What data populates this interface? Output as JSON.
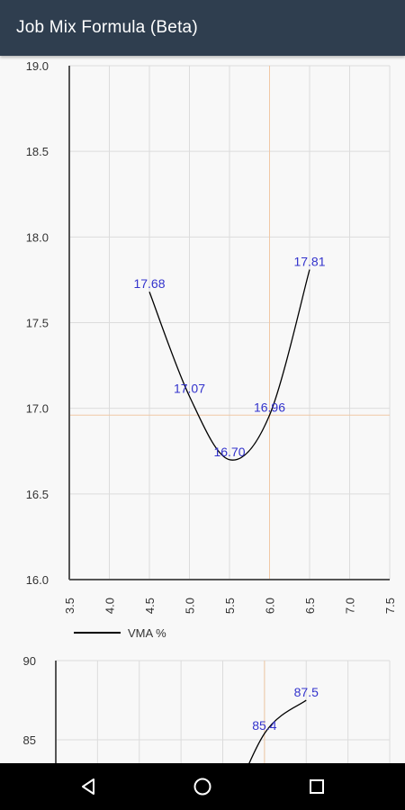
{
  "app": {
    "title": "Job Mix Formula (Beta)"
  },
  "colors": {
    "appbar": "#2f3e4f",
    "grid": "#dcdcdc",
    "target_line": "#f0c8a6",
    "data_label": "#3333cc",
    "line": "#000000"
  },
  "chart_data": [
    {
      "type": "line",
      "title": "",
      "xlabel": "",
      "ylabel": "",
      "xlim": [
        3.5,
        7.5
      ],
      "ylim": [
        16.0,
        19.0
      ],
      "x_ticks": [
        "3.5",
        "4.0",
        "4.5",
        "5.0",
        "5.5",
        "6.0",
        "6.5",
        "7.0",
        "7.5"
      ],
      "y_ticks": [
        "16.0",
        "16.5",
        "17.0",
        "17.5",
        "18.0",
        "18.5",
        "19.0"
      ],
      "grid": true,
      "target_x": 6.0,
      "target_y": 16.96,
      "legend": {
        "placement": "bottom-left",
        "label": "VMA %"
      },
      "series": [
        {
          "name": "VMA %",
          "x": [
            4.5,
            5.0,
            5.5,
            6.0,
            6.5
          ],
          "y": [
            17.68,
            17.07,
            16.7,
            16.96,
            17.81
          ],
          "labels": [
            "17.68",
            "17.07",
            "16.70",
            "16.96",
            "17.81"
          ]
        }
      ]
    },
    {
      "type": "line",
      "title": "",
      "xlabel": "",
      "ylabel": "",
      "xlim": [
        3.5,
        7.5
      ],
      "ylim": [
        80,
        90
      ],
      "y_ticks": [
        "85",
        "90"
      ],
      "grid": true,
      "target_x": 6.0,
      "partially_visible": true,
      "series": [
        {
          "x": [
            5.5,
            6.0,
            6.5
          ],
          "y": [
            79.5,
            85.4,
            87.5
          ],
          "labels": [
            "",
            "85.4",
            "87.5"
          ]
        }
      ]
    }
  ]
}
